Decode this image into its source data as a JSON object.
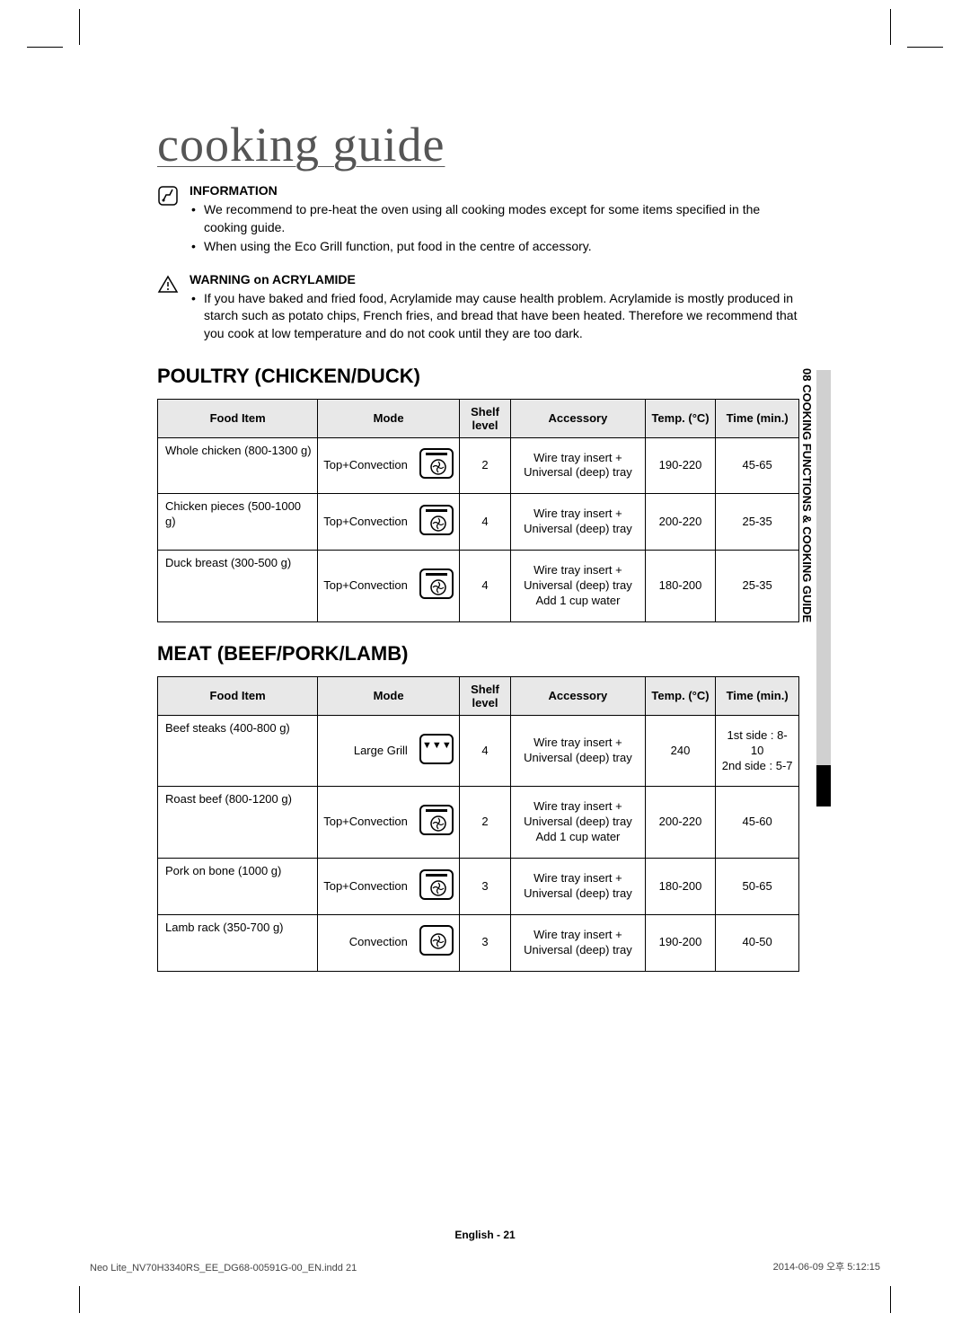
{
  "title": "cooking guide",
  "info_section": {
    "heading": "INFORMATION",
    "bullets": [
      "We recommend to pre-heat the oven using all cooking modes except for some items specified in the cooking guide.",
      "When using the Eco Grill function, put food in the centre of accessory."
    ]
  },
  "warning_section": {
    "heading": "WARNING on ACRYLAMIDE",
    "bullets": [
      "If you have baked and fried food, Acrylamide may cause health problem. Acrylamide is mostly produced in starch such as potato chips, French fries, and bread that have been heated. Therefore we recommend that you cook at low temperature and do not cook until they are too dark."
    ]
  },
  "poultry": {
    "title": "POULTRY (CHICKEN/DUCK)",
    "headers": {
      "food": "Food Item",
      "mode": "Mode",
      "shelf": "Shelf level",
      "accessory": "Accessory",
      "temp": "Temp. (°C)",
      "time": "Time (min.)"
    },
    "rows": [
      {
        "food": "Whole chicken (800-1300 g)",
        "mode_text": "Top+Convection",
        "mode_icon": "top-convection",
        "shelf": "2",
        "accessory": "Wire tray insert + Universal (deep) tray",
        "temp": "190-220",
        "time": "45-65"
      },
      {
        "food": "Chicken pieces (500-1000 g)",
        "mode_text": "Top+Convection",
        "mode_icon": "top-convection",
        "shelf": "4",
        "accessory": "Wire tray insert + Universal (deep) tray",
        "temp": "200-220",
        "time": "25-35"
      },
      {
        "food": "Duck breast (300-500 g)",
        "mode_text": "Top+Convection",
        "mode_icon": "top-convection",
        "shelf": "4",
        "accessory": "Wire tray insert + Universal (deep) tray Add 1 cup water",
        "temp": "180-200",
        "time": "25-35"
      }
    ]
  },
  "meat": {
    "title": "MEAT (BEEF/PORK/LAMB)",
    "headers": {
      "food": "Food Item",
      "mode": "Mode",
      "shelf": "Shelf level",
      "accessory": "Accessory",
      "temp": "Temp. (°C)",
      "time": "Time (min.)"
    },
    "rows": [
      {
        "food": "Beef steaks (400-800 g)",
        "mode_text": "Large Grill",
        "mode_icon": "large-grill",
        "shelf": "4",
        "accessory": "Wire tray insert + Universal (deep) tray",
        "temp": "240",
        "time": "1st side : 8-10 2nd side : 5-7"
      },
      {
        "food": "Roast beef (800-1200 g)",
        "mode_text": "Top+Convection",
        "mode_icon": "top-convection",
        "shelf": "2",
        "accessory": "Wire tray insert + Universal (deep) tray Add 1 cup water",
        "temp": "200-220",
        "time": "45-60"
      },
      {
        "food": "Pork on bone (1000 g)",
        "mode_text": "Top+Convection",
        "mode_icon": "top-convection",
        "shelf": "3",
        "accessory": "Wire tray insert + Universal (deep) tray",
        "temp": "180-200",
        "time": "50-65"
      },
      {
        "food": "Lamb rack (350-700 g)",
        "mode_text": "Convection",
        "mode_icon": "convection",
        "shelf": "3",
        "accessory": "Wire tray insert + Universal (deep) tray",
        "temp": "190-200",
        "time": "40-50"
      }
    ]
  },
  "side_label": "08  COOKING FUNCTIONS & COOKING GUIDE",
  "footer_center": "English - 21",
  "footer_left": "Neo Lite_NV70H3340RS_EE_DG68-00591G-00_EN.indd   21",
  "footer_right": "2014-06-09   오후 5:12:15"
}
